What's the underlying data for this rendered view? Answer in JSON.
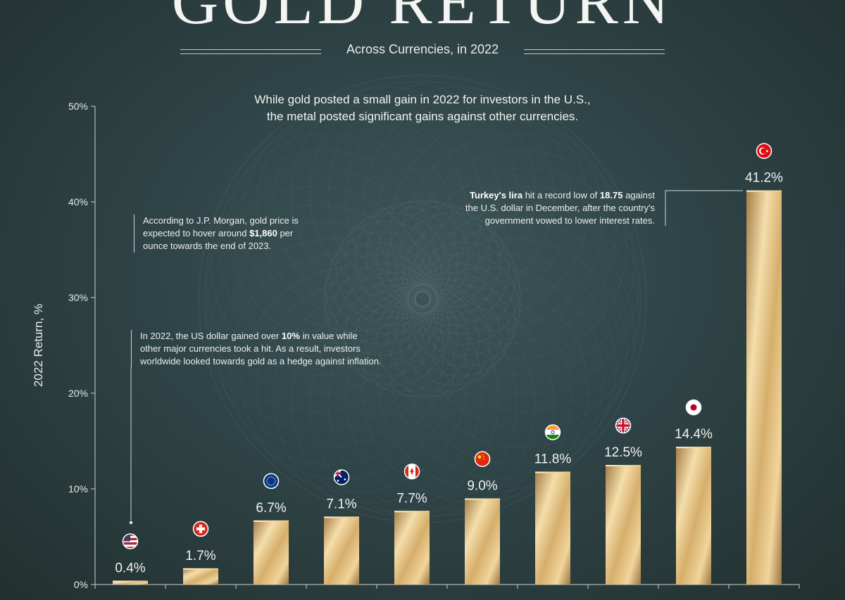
{
  "header": {
    "title": "GOLD RETURN",
    "subtitle": "Across Currencies, in 2022"
  },
  "intro": {
    "line1": "While gold posted a small gain in 2022 for investors in the U.S.,",
    "line2": "the metal posted significant gains against other currencies."
  },
  "notes": {
    "jpmorgan": {
      "l1": "According to J.P. Morgan, gold price is",
      "l2_pre": "expected to hover around ",
      "l2_bold": "$1,860",
      "l2_post": " per",
      "l3": "ounce towards the end of 2023."
    },
    "usd": {
      "l1_pre": "In 2022, the US dollar gained over ",
      "l1_bold": "10%",
      "l1_post": " in value while",
      "l2": "other major currencies took a hit. As a result, investors",
      "l3": "worldwide looked towards gold as a hedge against inflation."
    },
    "turkey": {
      "l1_bold1": "Turkey's lira",
      "l1_mid": " hit a record low of ",
      "l1_bold2": "18.75",
      "l1_post": " against",
      "l2": "the U.S. dollar in December, after the country's",
      "l3": "government vowed to lower interest rates."
    }
  },
  "chart_data": {
    "type": "bar",
    "ylabel": "2022 Return, %",
    "ylim": [
      0,
      50
    ],
    "yticks": [
      0,
      10,
      20,
      30,
      40,
      50
    ],
    "ytick_labels": [
      "0%",
      "10%",
      "20%",
      "30%",
      "40%",
      "50%"
    ],
    "series": [
      {
        "values": [
          0.4,
          1.7,
          6.7,
          7.1,
          7.7,
          9.0,
          11.8,
          12.5,
          14.4,
          41.2
        ]
      }
    ],
    "value_labels": [
      "0.4%",
      "1.7%",
      "6.7%",
      "7.1%",
      "7.7%",
      "9.0%",
      "11.8%",
      "12.5%",
      "14.4%",
      "41.2%"
    ],
    "flags": [
      "us-flag-icon",
      "swiss-flag-icon",
      "eu-flag-icon",
      "australia-flag-icon",
      "canada-flag-icon",
      "china-flag-icon",
      "india-flag-icon",
      "uk-flag-icon",
      "japan-flag-icon",
      "turkey-flag-icon"
    ],
    "colors": {
      "gold_light": "#f4deab",
      "gold_mid": "#d6ae6b",
      "gold_dark": "#a67c45",
      "axis": "#c9d2d0"
    }
  }
}
